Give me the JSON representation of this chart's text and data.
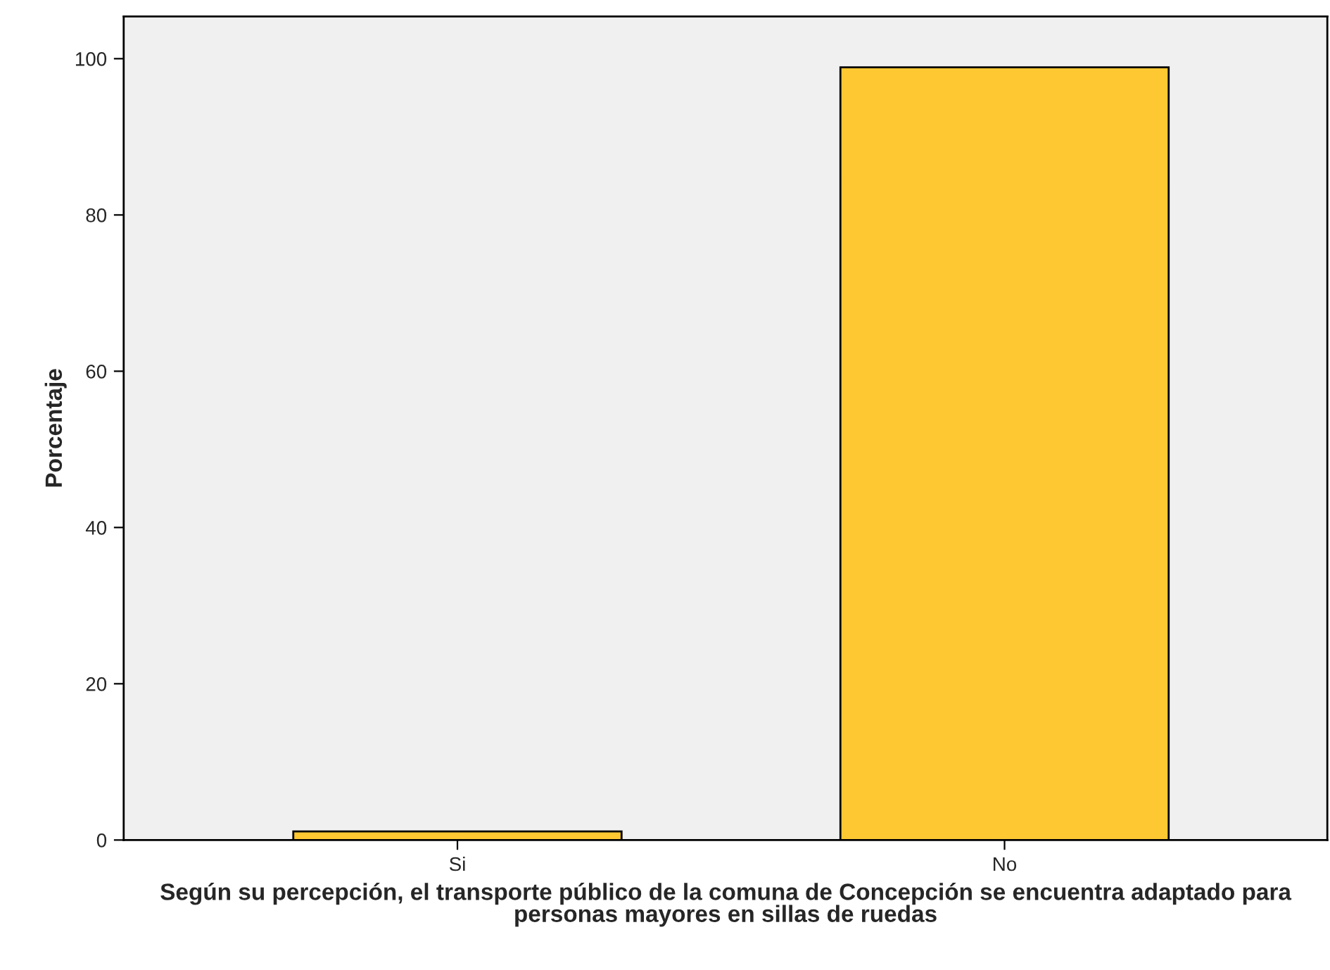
{
  "chart_data": {
    "type": "bar",
    "xlabel": "Según su percepción, el transporte público de la comuna de Concepción se encuentra adaptado para personas mayores en sillas de ruedas",
    "ylabel": "Porcentaje",
    "categories": [
      "Si",
      "No"
    ],
    "values": [
      1.1,
      98.9
    ],
    "color": "#fdc832",
    "ylim": [
      0,
      105.4
    ],
    "yticks": [
      0,
      20,
      40,
      60,
      80,
      100
    ],
    "grid": false,
    "legend": false
  }
}
